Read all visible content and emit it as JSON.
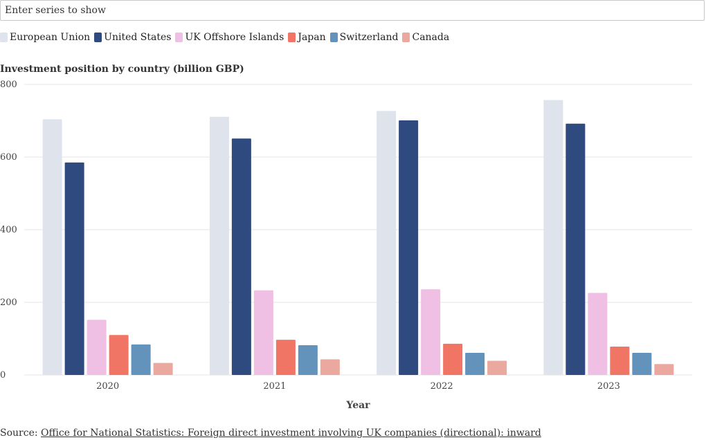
{
  "search": {
    "placeholder": "Enter series to show"
  },
  "source": {
    "prefix": "Source: ",
    "link_text": "Office for National Statistics: Foreign direct investment involving UK companies (directional): inward"
  },
  "chart_data": {
    "type": "bar",
    "title": "Investment position by country (billion GBP)",
    "xlabel": "Year",
    "ylabel": "",
    "ylim": [
      0,
      800
    ],
    "yticks": [
      0,
      200,
      400,
      600,
      800
    ],
    "grid": true,
    "legend_position": "top-left",
    "categories": [
      "2020",
      "2021",
      "2022",
      "2023"
    ],
    "series": [
      {
        "name": "European Union",
        "color": "#dfe3ec",
        "values": [
          704,
          711,
          727,
          757
        ]
      },
      {
        "name": "United States",
        "color": "#2f4a7e",
        "values": [
          585,
          651,
          701,
          692
        ]
      },
      {
        "name": "UK Offshore Islands",
        "color": "#f0c0e4",
        "values": [
          152,
          233,
          236,
          226
        ]
      },
      {
        "name": "Japan",
        "color": "#f07564",
        "values": [
          110,
          97,
          86,
          78
        ]
      },
      {
        "name": "Switzerland",
        "color": "#6393bb",
        "values": [
          84,
          82,
          61,
          61
        ]
      },
      {
        "name": "Canada",
        "color": "#eaa89e",
        "values": [
          33,
          43,
          39,
          30
        ]
      }
    ]
  }
}
